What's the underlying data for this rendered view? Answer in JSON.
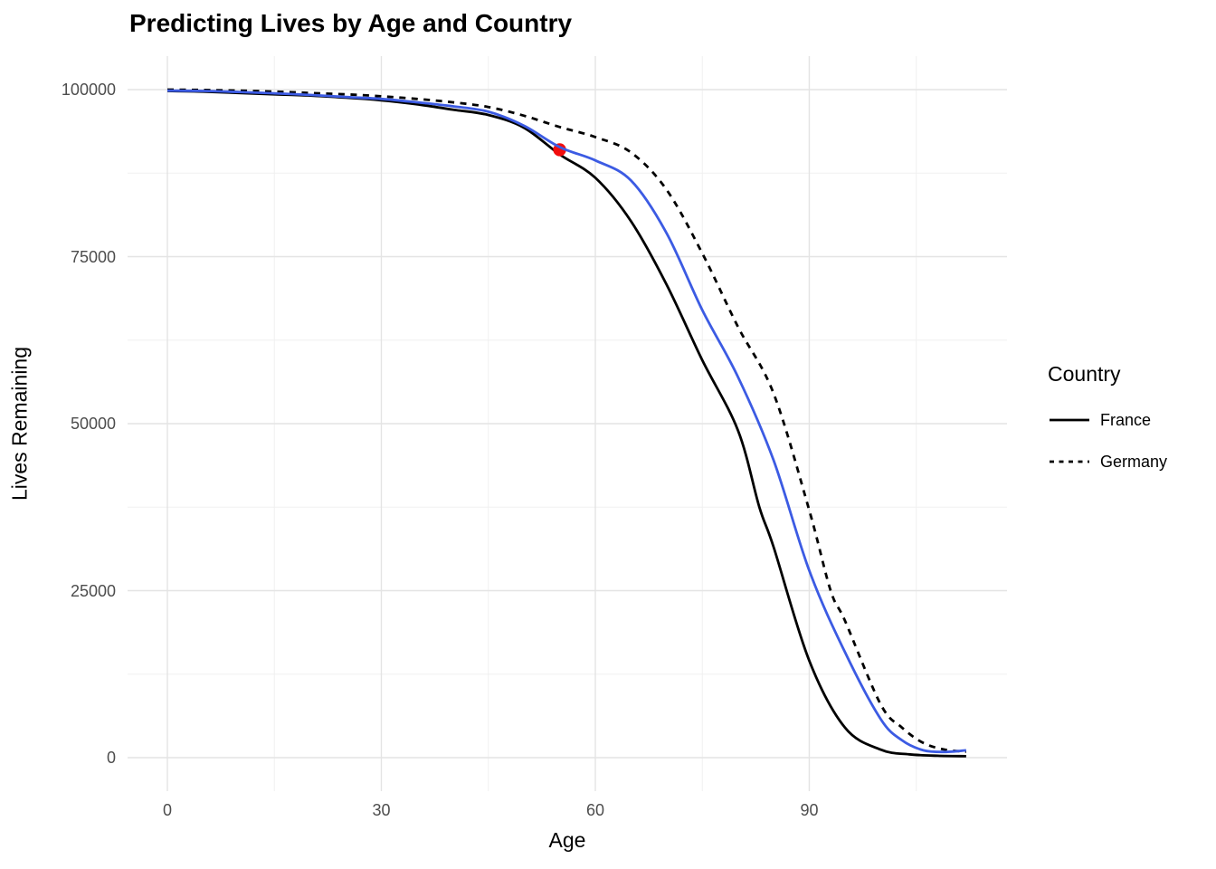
{
  "title": "Predicting Lives by Age and Country",
  "x_axis": {
    "label": "Age",
    "ticks": [
      0,
      30,
      60,
      90
    ],
    "minor_ticks": [
      15,
      45,
      75,
      105
    ],
    "range": [
      0,
      112
    ]
  },
  "y_axis": {
    "label": "Lives Remaining",
    "ticks": [
      0,
      25000,
      50000,
      75000,
      100000
    ],
    "minor_ticks": [
      12500,
      37500,
      62500,
      87500
    ],
    "range": [
      0,
      100000
    ]
  },
  "legend": {
    "title": "Country",
    "entries": [
      {
        "label": "France",
        "line_style": "solid",
        "color": "#000000"
      },
      {
        "label": "Germany",
        "line_style": "dashed",
        "color": "#000000"
      }
    ]
  },
  "colors": {
    "france_line": "#000000",
    "germany_line": "#000000",
    "prediction_line": "#3c5be3",
    "highlight_point": "#f20d0d",
    "grid_major": "#e4e4e4",
    "grid_minor": "#f0f0f0",
    "tick_text": "#4d4d4d",
    "background": "#ffffff"
  },
  "chart_data": {
    "type": "line",
    "title": "Predicting Lives by Age and Country",
    "xlabel": "Age",
    "ylabel": "Lives Remaining",
    "xlim": [
      0,
      112
    ],
    "ylim": [
      0,
      100000
    ],
    "grid": "on",
    "legend_position": "right",
    "series": [
      {
        "name": "France",
        "style": "solid",
        "color": "#000000",
        "points": [
          [
            0,
            99800
          ],
          [
            5,
            99700
          ],
          [
            10,
            99500
          ],
          [
            15,
            99300
          ],
          [
            20,
            99100
          ],
          [
            25,
            98800
          ],
          [
            30,
            98400
          ],
          [
            35,
            97800
          ],
          [
            40,
            97000
          ],
          [
            45,
            96200
          ],
          [
            50,
            94300
          ],
          [
            55,
            90300
          ],
          [
            60,
            86800
          ],
          [
            65,
            80300
          ],
          [
            70,
            70800
          ],
          [
            75,
            59500
          ],
          [
            80,
            49000
          ],
          [
            83,
            37500
          ],
          [
            85,
            31500
          ],
          [
            90,
            14500
          ],
          [
            95,
            4500
          ],
          [
            100,
            1200
          ],
          [
            104,
            500
          ],
          [
            108,
            280
          ],
          [
            112,
            220
          ]
        ]
      },
      {
        "name": "Germany",
        "style": "dashed",
        "color": "#000000",
        "points": [
          [
            0,
            100000
          ],
          [
            5,
            99950
          ],
          [
            10,
            99850
          ],
          [
            15,
            99700
          ],
          [
            20,
            99500
          ],
          [
            25,
            99300
          ],
          [
            30,
            99000
          ],
          [
            35,
            98600
          ],
          [
            40,
            98100
          ],
          [
            45,
            97400
          ],
          [
            50,
            96100
          ],
          [
            55,
            94400
          ],
          [
            60,
            92900
          ],
          [
            65,
            90600
          ],
          [
            70,
            85000
          ],
          [
            75,
            75500
          ],
          [
            80,
            64500
          ],
          [
            85,
            54500
          ],
          [
            90,
            37000
          ],
          [
            93,
            25000
          ],
          [
            95,
            20500
          ],
          [
            100,
            8000
          ],
          [
            103,
            4500
          ],
          [
            106,
            2200
          ],
          [
            109,
            1200
          ],
          [
            112,
            900
          ]
        ]
      },
      {
        "name": "prediction",
        "style": "solid",
        "color": "#3c5be3",
        "points": [
          [
            0,
            99850
          ],
          [
            5,
            99800
          ],
          [
            10,
            99650
          ],
          [
            15,
            99450
          ],
          [
            20,
            99200
          ],
          [
            25,
            98900
          ],
          [
            30,
            98600
          ],
          [
            35,
            98100
          ],
          [
            40,
            97500
          ],
          [
            45,
            96700
          ],
          [
            50,
            94600
          ],
          [
            55,
            91400
          ],
          [
            60,
            89400
          ],
          [
            65,
            86400
          ],
          [
            70,
            78500
          ],
          [
            75,
            67000
          ],
          [
            80,
            57000
          ],
          [
            85,
            44500
          ],
          [
            90,
            28000
          ],
          [
            95,
            15800
          ],
          [
            100,
            5800
          ],
          [
            103,
            2600
          ],
          [
            106,
            1100
          ],
          [
            109,
            850
          ],
          [
            112,
            1100
          ]
        ]
      }
    ],
    "highlight_point": {
      "x": 55,
      "y": 91000,
      "color": "#f20d0d"
    }
  }
}
